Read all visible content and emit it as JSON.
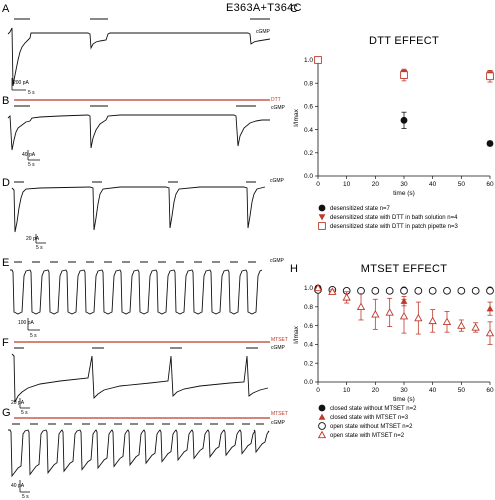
{
  "figure": {
    "construct": "E363A+T364C",
    "colors": {
      "black": "#111111",
      "red": "#c0392b"
    },
    "panels": {
      "A": {
        "letter": "A",
        "labels": [
          "cGMP"
        ],
        "scale_v": "200 pA",
        "scale_h": "5 s"
      },
      "B": {
        "letter": "B",
        "labels": [
          "DTT",
          "cGMP"
        ],
        "scale_v": "40 pA",
        "scale_h": "5 s"
      },
      "D": {
        "letter": "D",
        "labels": [
          "cGMP"
        ],
        "scale_v": "20 pA",
        "scale_h": "5 s"
      },
      "E": {
        "letter": "E",
        "labels": [
          "cGMP"
        ],
        "scale_v": "100 pA",
        "scale_h": "5 s"
      },
      "F": {
        "letter": "F",
        "labels": [
          "MTSET",
          "cGMP"
        ],
        "scale_v": "20 pA",
        "scale_h": "5 s"
      },
      "G": {
        "letter": "G",
        "labels": [
          "MTSET",
          "cGMP"
        ],
        "scale_v": "40 pA",
        "scale_h": "5 s"
      }
    }
  },
  "chart_data": [
    {
      "panel": "C",
      "type": "scatter",
      "title": "DTT EFFECT",
      "xlabel": "time (s)",
      "ylabel": "I/Imax",
      "xlim": [
        0,
        60
      ],
      "ylim": [
        0,
        1.0
      ],
      "xticks": [
        0,
        10,
        20,
        30,
        40,
        50,
        60
      ],
      "yticks": [
        0.0,
        0.2,
        0.4,
        0.6,
        0.8,
        1.0
      ],
      "series": [
        {
          "name": "desensitized state n=7",
          "marker": "filled-circle",
          "color": "#111111",
          "x": [
            0,
            30,
            60
          ],
          "y": [
            1.0,
            0.48,
            0.28
          ],
          "err": [
            0,
            0.07,
            0.02
          ]
        },
        {
          "name": "desensitized state with DTT in bath solution n=4",
          "marker": "filled-triangle-down",
          "color": "#c0392b",
          "x": [
            0,
            30,
            60
          ],
          "y": [
            1.0,
            0.89,
            0.88
          ],
          "err": [
            0,
            0.03,
            0.03
          ]
        },
        {
          "name": "desensitized state with DTT in patch pipette n=3",
          "marker": "open-square",
          "color": "#c0392b",
          "x": [
            0,
            30,
            60
          ],
          "y": [
            1.0,
            0.87,
            0.86
          ],
          "err": [
            0,
            0.05,
            0.05
          ]
        }
      ],
      "legend_placement": "bottom"
    },
    {
      "panel": "H",
      "type": "scatter",
      "title": "MTSET EFFECT",
      "xlabel": "time (s)",
      "ylabel": "I/Imax",
      "xlim": [
        0,
        60
      ],
      "ylim": [
        0,
        1.0
      ],
      "xticks": [
        0,
        10,
        20,
        30,
        40,
        50,
        60
      ],
      "yticks": [
        0.0,
        0.2,
        0.4,
        0.6,
        0.8,
        1.0
      ],
      "series": [
        {
          "name": "closed state without MTSET n=2",
          "marker": "filled-circle",
          "color": "#111111",
          "x": [
            0,
            30,
            60
          ],
          "y": [
            1.0,
            0.98,
            0.98
          ],
          "err": [
            0,
            0.02,
            0.02
          ]
        },
        {
          "name": "closed state with MTSET n=3",
          "marker": "filled-triangle-up",
          "color": "#c0392b",
          "x": [
            0,
            30,
            60
          ],
          "y": [
            1.0,
            0.86,
            0.78
          ],
          "err": [
            0,
            0.05,
            0.07
          ]
        },
        {
          "name": "open state without MTSET n=2",
          "marker": "open-circle",
          "color": "#111111",
          "x": [
            0,
            5,
            10,
            15,
            20,
            25,
            30,
            35,
            40,
            45,
            50,
            55,
            60
          ],
          "y": [
            0.98,
            0.98,
            0.97,
            0.97,
            0.97,
            0.97,
            0.97,
            0.97,
            0.97,
            0.97,
            0.97,
            0.97,
            0.97
          ],
          "err": [
            0,
            0,
            0,
            0,
            0,
            0,
            0,
            0,
            0,
            0,
            0,
            0,
            0
          ]
        },
        {
          "name": "open state with MTSET n=2",
          "marker": "open-triangle-up",
          "color": "#c0392b",
          "x": [
            0,
            5,
            10,
            15,
            20,
            25,
            30,
            35,
            40,
            45,
            50,
            55,
            60
          ],
          "y": [
            1.0,
            0.96,
            0.9,
            0.8,
            0.72,
            0.74,
            0.7,
            0.68,
            0.65,
            0.64,
            0.6,
            0.58,
            0.52
          ],
          "err": [
            0,
            0.02,
            0.06,
            0.14,
            0.16,
            0.15,
            0.18,
            0.17,
            0.12,
            0.11,
            0.06,
            0.05,
            0.12
          ]
        }
      ],
      "legend_placement": "bottom"
    }
  ]
}
